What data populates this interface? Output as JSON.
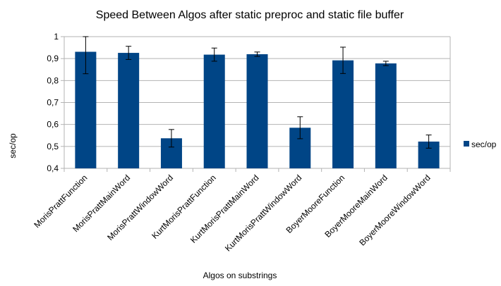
{
  "chart_data": {
    "type": "bar",
    "title": "Speed Between Algos after static preproc and static file buffer",
    "xlabel": "Algos on substrings",
    "ylabel": "sec/op",
    "ylim": [
      0.4,
      1.0
    ],
    "yticks": [
      "0,4",
      "0,5",
      "0,6",
      "0,7",
      "0,8",
      "0,9",
      "1"
    ],
    "ytick_values": [
      0.4,
      0.5,
      0.6,
      0.7,
      0.8,
      0.9,
      1.0
    ],
    "grid": true,
    "legend_position": "right",
    "categories": [
      "MorisPrattFunction",
      "MorisPrattMainWord",
      "MorisPrattWindowWord",
      "KurtMorisPrattFunction",
      "KurtMorisPrattMainWord",
      "KurtMorisPrattWindowWord",
      "BoyerMooreFunction",
      "BoyerMooreMainWord",
      "BoyerMooreWindowWord"
    ],
    "series": [
      {
        "name": "sec/op",
        "color": "#004586",
        "values": [
          0.931,
          0.926,
          0.537,
          0.918,
          0.92,
          0.585,
          0.892,
          0.878,
          0.522
        ],
        "error": [
          0.1,
          0.03,
          0.04,
          0.03,
          0.01,
          0.05,
          0.06,
          0.01,
          0.03
        ]
      }
    ]
  }
}
